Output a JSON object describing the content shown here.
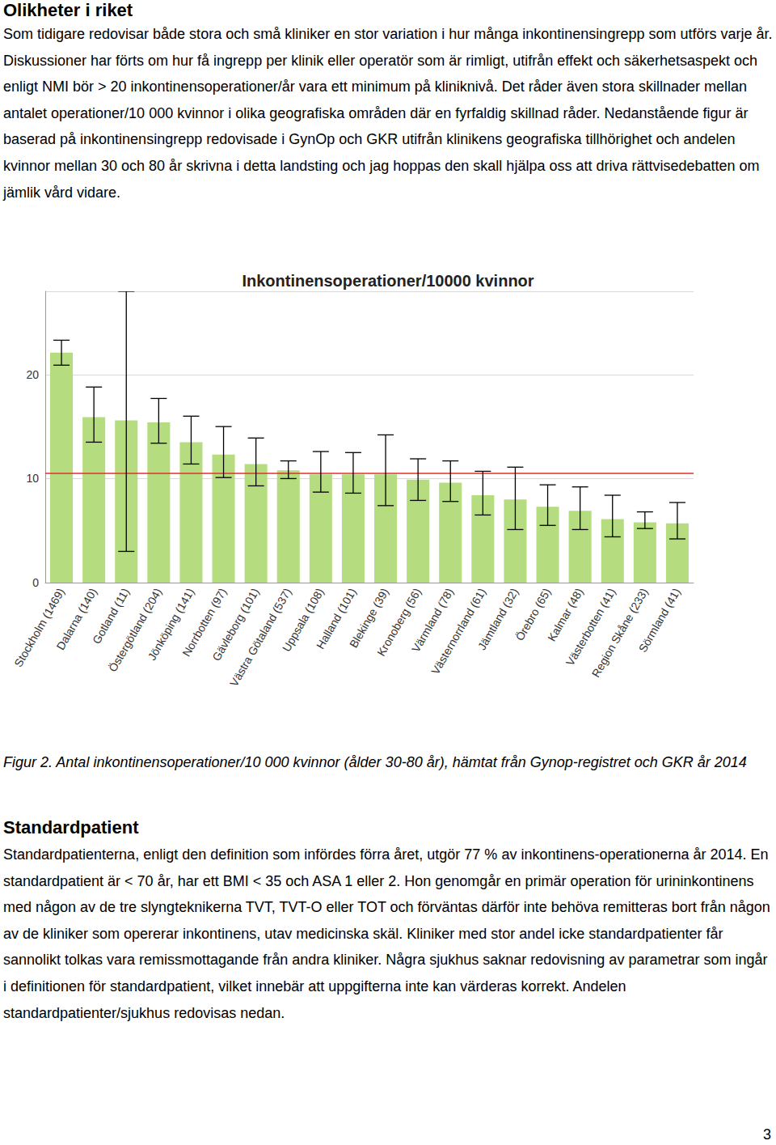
{
  "heading": "Olikheter i riket",
  "paragraph": "Som tidigare redovisar både stora och små kliniker en stor variation i hur många inkontinensingrepp som utförs varje år. Diskussioner har förts om hur få ingrepp per klinik eller operatör som är rimligt, utifrån effekt och säkerhetsaspekt och enligt NMI bör > 20 inkontinensoperationer/år vara ett minimum på kliniknivå. Det råder även stora skillnader mellan antalet operationer/10 000 kvinnor i olika geografiska områden där en fyrfaldig skillnad råder. Nedanstående figur är baserad på inkontinensingrepp redovisade i GynOp och GKR utifrån klinikens geografiska tillhörighet och andelen kvinnor mellan 30 och 80 år skrivna i detta landsting och jag hoppas den skall hjälpa oss att driva rättvisedebatten om jämlik vård vidare.",
  "chart_data": {
    "type": "bar",
    "title": "Inkontinensoperationer/10000 kvinnor",
    "categories": [
      "Stockholm (1469)",
      "Dalarna (140)",
      "Gotland (11)",
      "Östergötland (204)",
      "Jönköping (141)",
      "Norrbotten (97)",
      "Gävleborg (101)",
      "Västra Götaland (537)",
      "Uppsala (108)",
      "Halland (101)",
      "Blekinge (39)",
      "Kronoberg (56)",
      "Värmland (78)",
      "Västernorrland (61)",
      "Jämtland (32)",
      "Örebro (65)",
      "Kalmar (48)",
      "Västerbotten (41)",
      "Region Skåne (233)",
      "Sörmland (41)"
    ],
    "values": [
      22.1,
      15.9,
      15.6,
      15.4,
      13.5,
      12.3,
      11.4,
      10.8,
      10.4,
      10.4,
      10.4,
      9.9,
      9.6,
      8.4,
      8.0,
      7.3,
      6.9,
      6.1,
      5.8,
      5.7
    ],
    "error_low": [
      20.9,
      13.5,
      3.0,
      13.4,
      11.4,
      10.1,
      9.3,
      10.0,
      8.7,
      8.6,
      7.4,
      7.9,
      7.8,
      6.5,
      5.1,
      5.5,
      5.1,
      4.4,
      5.2,
      4.2
    ],
    "error_high": [
      23.3,
      18.8,
      28.0,
      17.7,
      16.0,
      15.0,
      13.9,
      11.7,
      12.6,
      12.5,
      14.2,
      11.9,
      11.7,
      10.7,
      11.1,
      9.4,
      9.2,
      8.4,
      6.8,
      7.7
    ],
    "reference_line": 10.5,
    "color": "#b5dd7f",
    "ylim": [
      0,
      28
    ],
    "yticks": [
      0,
      10,
      20
    ],
    "grid": true
  },
  "caption": "Figur 2. Antal inkontinensoperationer/10 000 kvinnor (ålder 30-80 år), hämtat från Gynop-registret och GKR år 2014",
  "heading2": "Standardpatient",
  "paragraph2": "Standardpatienterna, enligt den definition som infördes förra året, utgör 77 % av inkontinens-operationerna år 2014. En standardpatient är < 70 år, har ett BMI < 35 och ASA 1 eller 2. Hon genomgår en primär operation för urininkontinens med någon av de tre slyngteknikerna TVT, TVT-O eller TOT och förväntas därför inte behöva remitteras bort från någon av de kliniker som opererar inkontinens, utav medicinska skäl. Kliniker med stor andel icke standardpatienter får sannolikt tolkas vara remissmottagande från andra kliniker. Några sjukhus saknar redovisning av parametrar som ingår i definitionen för standardpatient, vilket innebär att uppgifterna inte kan värderas korrekt. Andelen standardpatienter/sjukhus redovisas nedan.",
  "page_number": "3"
}
